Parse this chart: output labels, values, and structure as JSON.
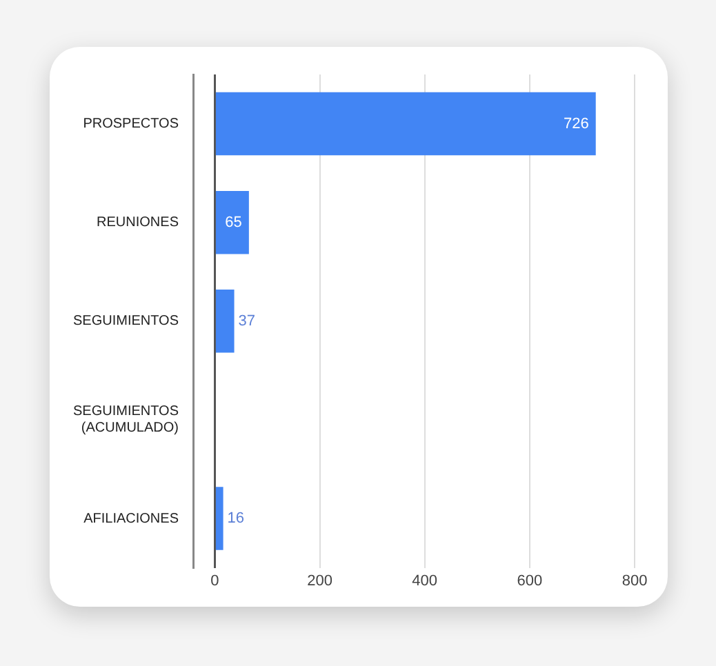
{
  "chart_data": {
    "type": "bar",
    "orientation": "horizontal",
    "categories": [
      "PROSPECTOS",
      "REUNIONES",
      "SEGUIMIENTOS",
      "SEGUIMIENTOS (ACUMULADO)",
      "AFILIACIONES"
    ],
    "values": [
      726,
      65,
      37,
      0,
      16
    ],
    "value_labels": [
      "726",
      "65",
      "37",
      null,
      "16"
    ],
    "color": "#4285f4",
    "xlim": [
      -40,
      800
    ],
    "xticks": [
      0,
      200,
      400,
      600,
      800
    ],
    "grid": "x",
    "legend": false
  }
}
